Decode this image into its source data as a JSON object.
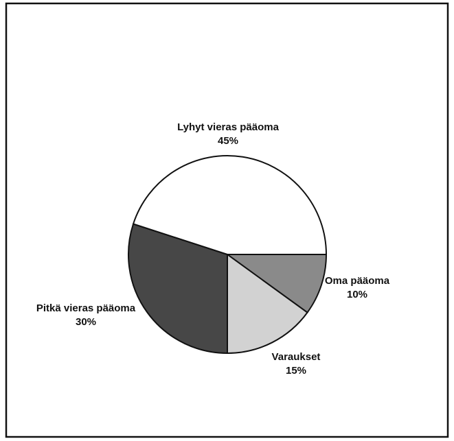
{
  "chart_data": {
    "type": "pie",
    "categories": [
      "Oma pääoma",
      "Varaukset",
      "Pitkä vieras pääoma",
      "Lyhyt vieras pääoma"
    ],
    "values": [
      10,
      15,
      30,
      45
    ],
    "value_labels": [
      "10%",
      "15%",
      "30%",
      "45%"
    ],
    "colors": [
      "#8a8a8a",
      "#d2d2d2",
      "#474747",
      "#ffffff"
    ],
    "start_angle": 0,
    "direction": "clockwise"
  }
}
